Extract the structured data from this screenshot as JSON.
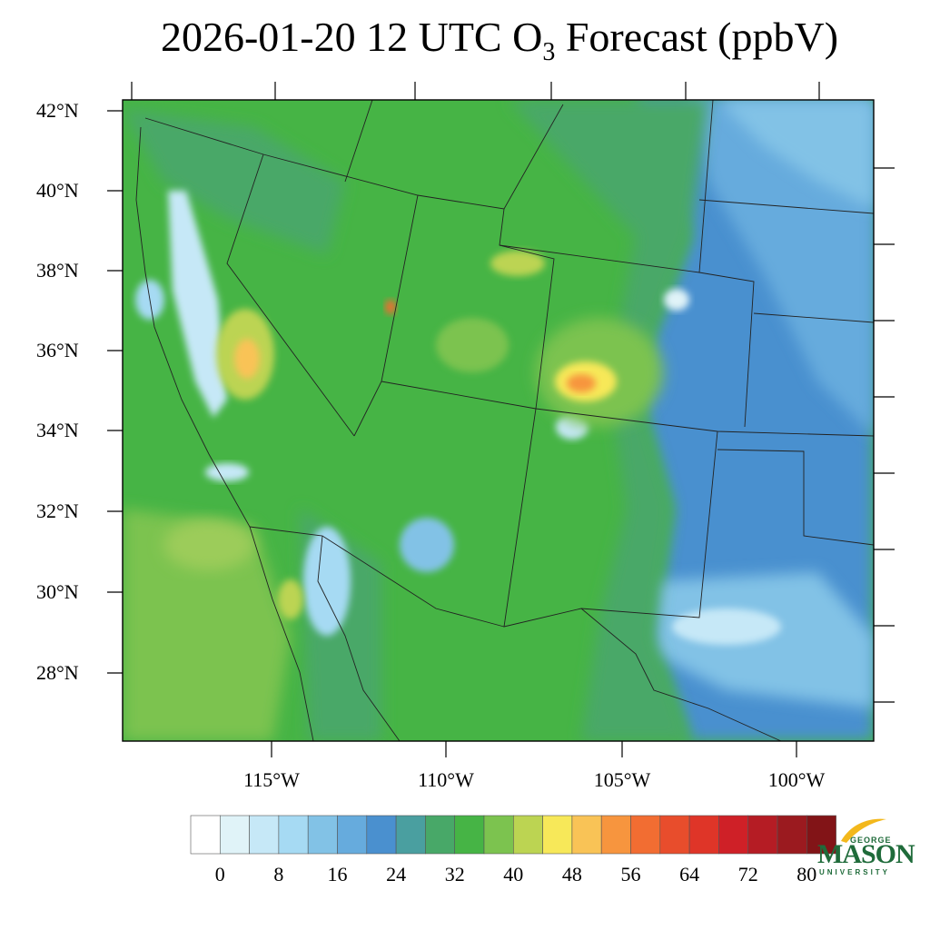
{
  "title": {
    "main": "2026-01-20 12 UTC O",
    "subscript": "3",
    "suffix": " Forecast (ppbV)"
  },
  "axes": {
    "lat_labels": [
      "42°N",
      "40°N",
      "38°N",
      "36°N",
      "34°N",
      "32°N",
      "30°N",
      "28°N"
    ],
    "lat_values": [
      42,
      40,
      38,
      36,
      34,
      32,
      30,
      28
    ],
    "lon_labels": [
      "115°W",
      "110°W",
      "105°W",
      "100°W"
    ],
    "lon_values": [
      -115,
      -110,
      -105,
      -100
    ]
  },
  "colorbar": {
    "labels": [
      "0",
      "8",
      "16",
      "24",
      "32",
      "40",
      "48",
      "56",
      "64",
      "72",
      "80"
    ],
    "colors": [
      "#ffffff",
      "#e0f3f8",
      "#c6e8f7",
      "#a6daf3",
      "#82c2e6",
      "#66abdd",
      "#4a90cf",
      "#4a9fa0",
      "#48a868",
      "#46b445",
      "#7cc34f",
      "#bcd452",
      "#f7e859",
      "#f9c356",
      "#f7953e",
      "#f26d32",
      "#e84d2c",
      "#df3528",
      "#cf2027",
      "#b51c24",
      "#9b1a1f",
      "#821417"
    ]
  },
  "logo": {
    "top": "GEORGE",
    "main": "MASON",
    "bottom": "UNIVERSITY"
  }
}
